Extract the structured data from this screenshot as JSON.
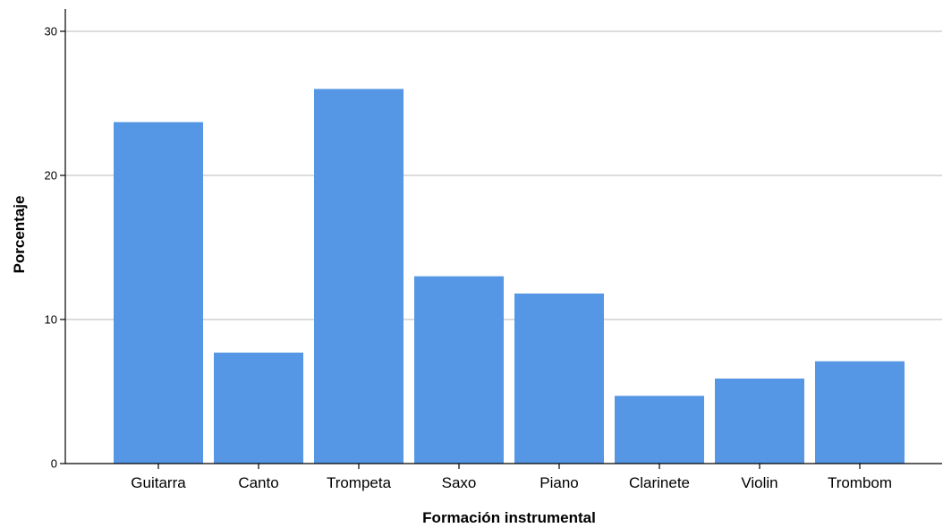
{
  "chart_data": {
    "type": "bar",
    "categories": [
      "Guitarra",
      "Canto",
      "Trompeta",
      "Saxo",
      "Piano",
      "Clarinete",
      "Violin",
      "Trombom"
    ],
    "values": [
      23.7,
      7.7,
      26.0,
      13.0,
      11.8,
      4.7,
      5.9,
      7.1
    ],
    "xlabel": "Formación instrumental",
    "ylabel": "Porcentaje",
    "ylim": [
      0,
      30
    ],
    "yticks": [
      0,
      10,
      20,
      30
    ],
    "grid": true,
    "legend": "none",
    "colors": {
      "bar": "#5597e5",
      "grid": "#c8c8c8",
      "axis": "#000000",
      "background": "#ffffff"
    }
  }
}
